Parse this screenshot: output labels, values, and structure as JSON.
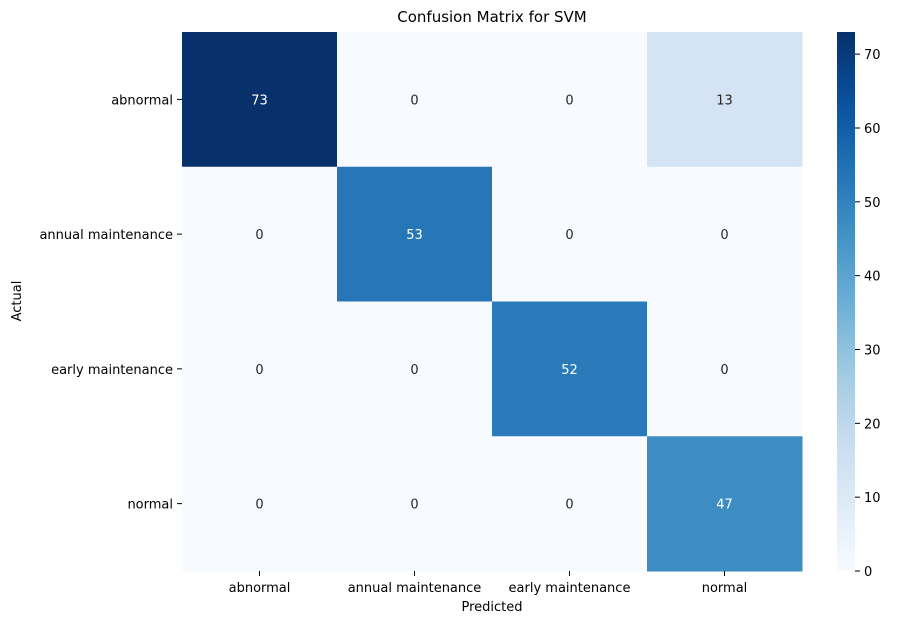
{
  "chart_data": {
    "type": "heatmap",
    "title": "Confusion Matrix for SVM",
    "xlabel": "Predicted",
    "ylabel": "Actual",
    "x_categories": [
      "abnormal",
      "annual maintenance",
      "early maintenance",
      "normal"
    ],
    "y_categories": [
      "abnormal",
      "annual maintenance",
      "early maintenance",
      "normal"
    ],
    "values": [
      [
        73,
        0,
        0,
        13
      ],
      [
        0,
        53,
        0,
        0
      ],
      [
        0,
        0,
        52,
        0
      ],
      [
        0,
        0,
        0,
        47
      ]
    ],
    "colormap": "Blues",
    "colorbar": {
      "min": 0,
      "max": 73,
      "ticks": [
        0,
        10,
        20,
        30,
        40,
        50,
        60,
        70
      ]
    },
    "annotations": true
  }
}
